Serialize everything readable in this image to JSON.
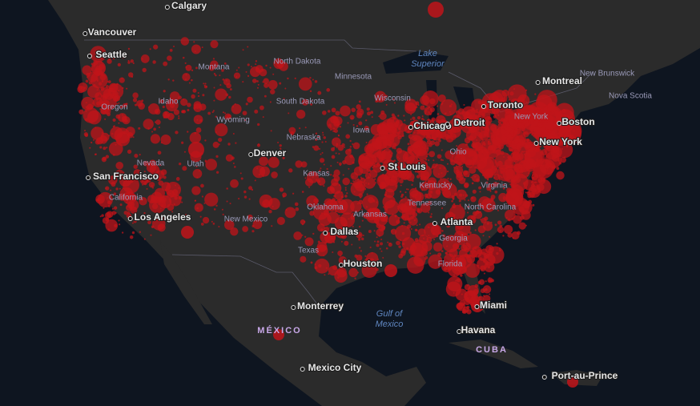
{
  "map": {
    "cities": [
      "Calgary",
      "Vancouver",
      "Seattle",
      "Montreal",
      "Toronto",
      "Chicago",
      "Detroit",
      "New York",
      "Boston",
      "Denver",
      "St Louis",
      "San Francisco",
      "Los Angeles",
      "Dallas",
      "Houston",
      "Atlanta",
      "Miami",
      "Havana",
      "Monterrey",
      "Mexico City",
      "Port-au-Prince"
    ],
    "regions": [
      "North Dakota",
      "Montana",
      "Minnesota",
      "Idaho",
      "Oregon",
      "South Dakota",
      "Wisconsin",
      "Wyoming",
      "Nebraska",
      "Iowa",
      "Ohio",
      "Nevada",
      "Utah",
      "Kansas",
      "Kentucky",
      "Virginia",
      "California",
      "Oklahoma",
      "Tennessee",
      "North Carolina",
      "Arkansas",
      "New Mexico",
      "Georgia",
      "Texas",
      "Florida",
      "New Brunswick",
      "Nova Scotia",
      "New York"
    ],
    "countries": [
      "MÉXICO",
      "CUBA"
    ],
    "water": [
      {
        "lines": [
          "Lake",
          "Superior"
        ]
      },
      {
        "lines": [
          "Gulf of",
          "Mexico"
        ]
      }
    ]
  }
}
